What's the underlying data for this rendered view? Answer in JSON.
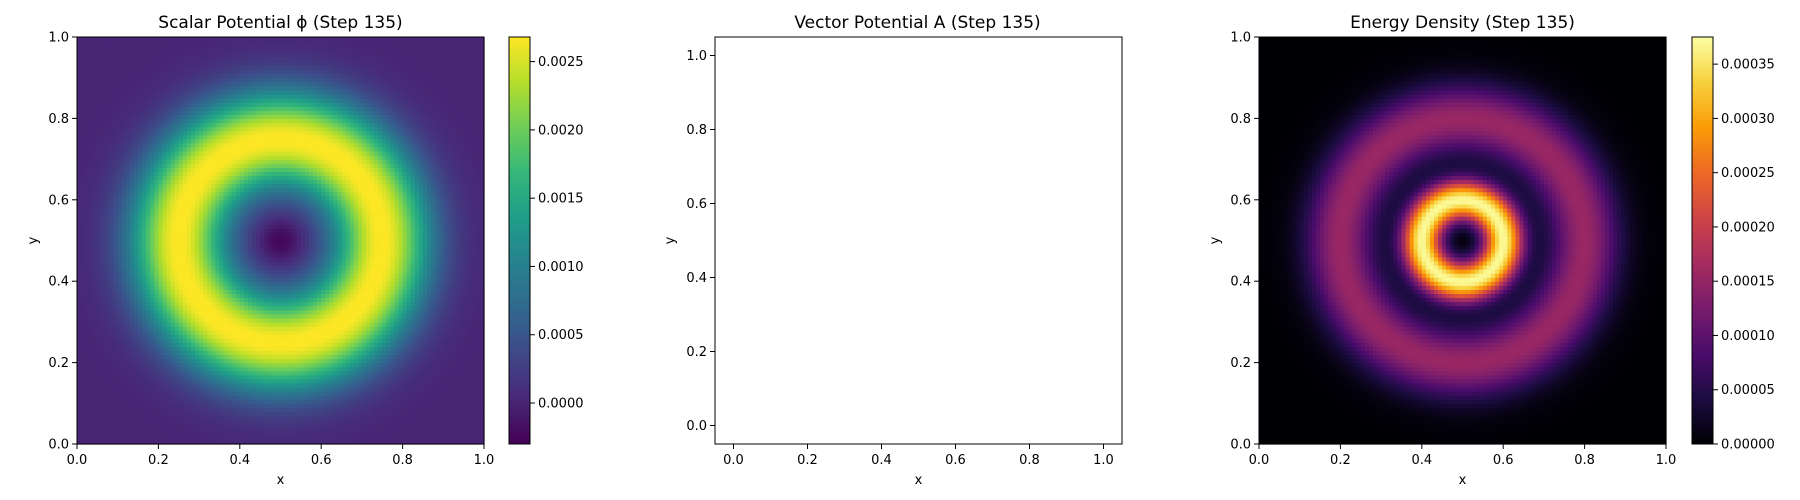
{
  "chart_data": [
    {
      "type": "heatmap",
      "title": "Scalar Potential ϕ (Step 135)",
      "xlabel": "x",
      "ylabel": "y",
      "xlim": [
        0.0,
        1.0
      ],
      "ylim": [
        0.0,
        1.0
      ],
      "xticks": [
        "0.0",
        "0.2",
        "0.4",
        "0.6",
        "0.8",
        "1.0"
      ],
      "yticks": [
        "0.0",
        "0.2",
        "0.4",
        "0.6",
        "0.8",
        "1.0"
      ],
      "colormap": "viridis",
      "grid": false,
      "field": {
        "center": [
          0.5,
          0.5
        ],
        "ring_radius": 0.25,
        "ring_width": 0.085,
        "ring_peak": 0.0027,
        "center_min": -0.0003,
        "background": 0.0
      },
      "colorbar": {
        "range": [
          -0.0003,
          0.00268
        ],
        "ticks": [
          0.0,
          0.0005,
          0.001,
          0.0015,
          0.002,
          0.0025
        ],
        "tick_labels": [
          "0.0000",
          "0.0005",
          "0.0010",
          "0.0015",
          "0.0020",
          "0.0025"
        ]
      }
    },
    {
      "type": "scatter",
      "title": "Vector Potential A (Step 135)",
      "xlabel": "x",
      "ylabel": "y",
      "xlim": [
        -0.05,
        1.05
      ],
      "ylim": [
        -0.05,
        1.05
      ],
      "xticks": [
        "0.0",
        "0.2",
        "0.4",
        "0.6",
        "0.8",
        "1.0"
      ],
      "yticks": [
        "0.0",
        "0.2",
        "0.4",
        "0.6",
        "0.8",
        "1.0"
      ],
      "grid": false,
      "series": []
    },
    {
      "type": "heatmap",
      "title": "Energy Density (Step 135)",
      "xlabel": "x",
      "ylabel": "y",
      "xlim": [
        0.0,
        1.0
      ],
      "ylim": [
        0.0,
        1.0
      ],
      "xticks": [
        "0.0",
        "0.2",
        "0.4",
        "0.6",
        "0.8",
        "1.0"
      ],
      "yticks": [
        "0.0",
        "0.2",
        "0.4",
        "0.6",
        "0.8",
        "1.0"
      ],
      "colormap": "inferno",
      "grid": false,
      "field": {
        "center": [
          0.5,
          0.5
        ],
        "inner_ring_radius": 0.1,
        "inner_ring_width": 0.035,
        "inner_ring_peak": 0.00037,
        "outer_ring_radius": 0.3,
        "outer_ring_width": 0.06,
        "outer_ring_peak": 0.000155
      },
      "colorbar": {
        "range": [
          0.0,
          0.000375
        ],
        "ticks": [
          0.0,
          5e-05,
          0.0001,
          0.00015,
          0.0002,
          0.00025,
          0.0003,
          0.00035
        ],
        "tick_labels": [
          "0.00000",
          "0.00005",
          "0.00010",
          "0.00015",
          "0.00020",
          "0.00025",
          "0.00030",
          "0.00035"
        ]
      }
    }
  ]
}
